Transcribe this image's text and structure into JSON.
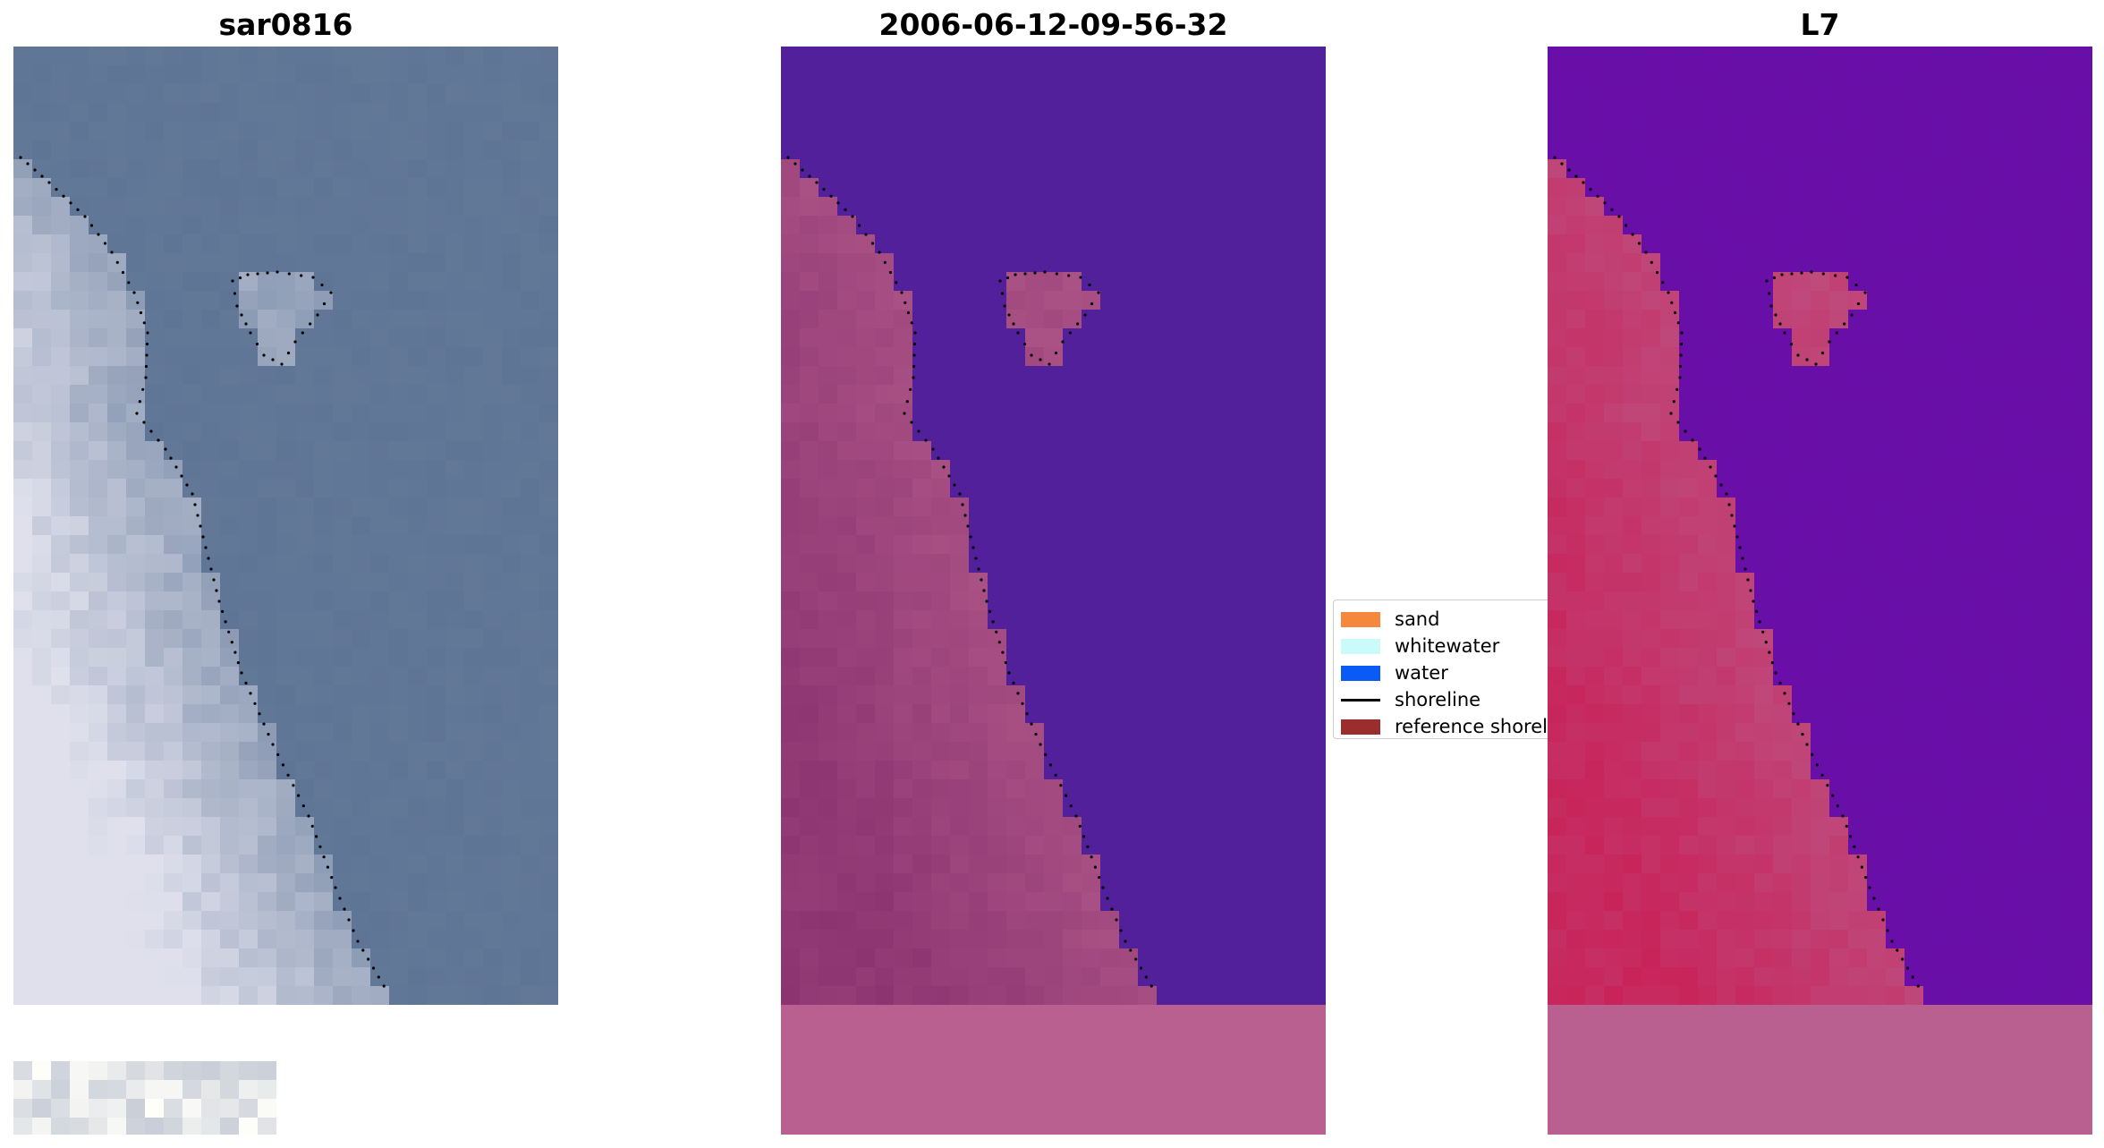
{
  "panels": [
    {
      "title": "sar0816"
    },
    {
      "title": "2006-06-12-09-56-32"
    },
    {
      "title": "L7"
    }
  ],
  "legend": {
    "items": [
      {
        "label": "sand",
        "color": "#f5883c",
        "kind": "patch"
      },
      {
        "label": "whitewater",
        "color": "#c8fbfa",
        "kind": "patch"
      },
      {
        "label": "water",
        "color": "#0a5af5",
        "kind": "patch"
      },
      {
        "label": "shoreline",
        "color": "#000000",
        "kind": "line"
      },
      {
        "label": "reference shoreline",
        "color": "#9b2d2d",
        "kind": "patch"
      }
    ]
  },
  "colors": {
    "rgb_land": "#dfe0ec",
    "rgb_sea": "#5f7596",
    "classified_water": "#52209a",
    "classified_land": "#8b3470",
    "classified_nodata": "#b96090",
    "index_land": "#c8245a",
    "index_water": "#6a0ea8",
    "shoreline_dots": "#000000"
  }
}
